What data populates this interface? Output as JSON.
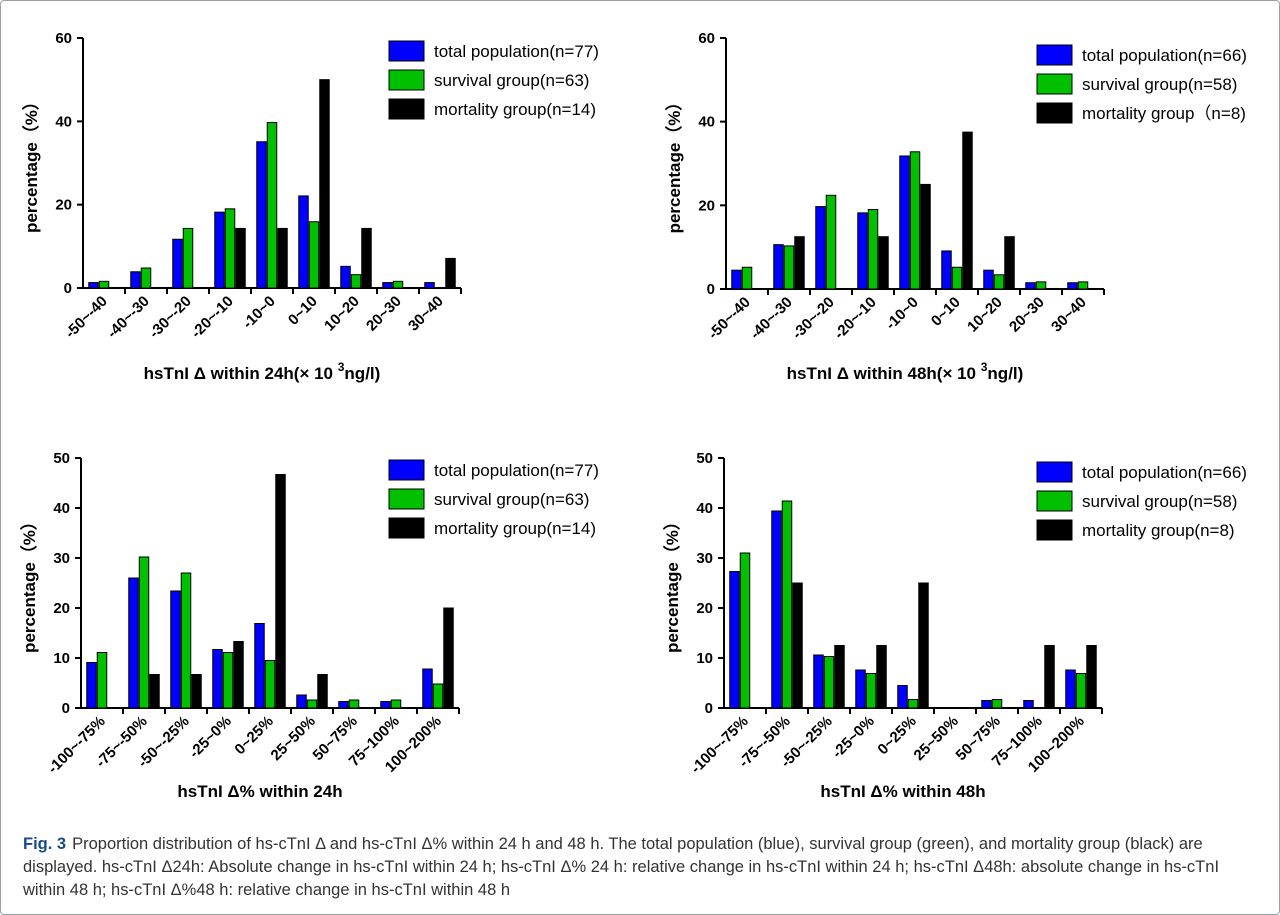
{
  "caption": {
    "label": "Fig. 3",
    "text": "Proportion distribution of hs-cTnI Δ and hs-cTnI Δ% within 24 h and 48 h. The total population (blue), survival group (green), and mortality group (black) are displayed. hs-cTnI Δ24h: Absolute change in hs-cTnI within 24 h; hs-cTnI Δ% 24 h: relative change in hs-cTnI within 24 h; hs-cTnI Δ48h: absolute change in hs-cTnI within 48 h; hs-cTnI Δ%48 h: relative change in hs-cTnI within 48 h"
  },
  "colors": {
    "total": "#0000ff",
    "survival": "#00c000",
    "mortality": "#000000"
  },
  "chart_data": [
    {
      "type": "bar",
      "ylabel": "percentage（%）",
      "xlabel": "hsTnI Δ within 24h(× 10 3ng/l)",
      "xlabel_parts": [
        "hsTnI Δ within 24h(× 10",
        "3",
        "ng/l)"
      ],
      "ylim": [
        0,
        60
      ],
      "yticks": [
        0,
        20,
        40,
        60
      ],
      "categories": [
        "-50~-40",
        "-40~-30",
        "-30~-20",
        "-20~-10",
        "-10~0",
        "0~10",
        "10~20",
        "20~30",
        "30~40"
      ],
      "series": [
        {
          "name": "total population(n=77)",
          "values": [
            1.3,
            3.9,
            11.7,
            18.2,
            35.1,
            22.1,
            5.2,
            1.3,
            1.3
          ]
        },
        {
          "name": "survival group(n=63)",
          "values": [
            1.6,
            4.8,
            14.3,
            19.0,
            39.7,
            15.9,
            3.2,
            1.6,
            0
          ]
        },
        {
          "name": "mortality group(n=14)",
          "values": [
            0,
            0,
            0,
            14.3,
            14.3,
            50.0,
            14.3,
            0,
            7.1
          ]
        }
      ]
    },
    {
      "type": "bar",
      "ylabel": "percentage（%）",
      "xlabel": "hsTnI Δ within 48h(× 10 3ng/l)",
      "xlabel_parts": [
        "hsTnI Δ within 48h(× 10",
        "3",
        "ng/l)"
      ],
      "ylim": [
        0,
        60
      ],
      "yticks": [
        0,
        20,
        40,
        60
      ],
      "categories": [
        "-50~-40",
        "-40~-30",
        "-30~-20",
        "-20~-10",
        "-10~0",
        "0~10",
        "10~20",
        "20~30",
        "30~40"
      ],
      "series": [
        {
          "name": "total population(n=66)",
          "values": [
            4.5,
            10.6,
            19.7,
            18.2,
            31.8,
            9.1,
            4.5,
            1.5,
            1.5
          ]
        },
        {
          "name": "survival group(n=58)",
          "values": [
            5.2,
            10.3,
            22.4,
            19.0,
            32.8,
            5.2,
            3.4,
            1.7,
            1.7
          ]
        },
        {
          "name": "mortality group（n=8)",
          "values": [
            0,
            12.5,
            0,
            12.5,
            25.0,
            37.5,
            12.5,
            0,
            0
          ]
        }
      ]
    },
    {
      "type": "bar",
      "ylabel": "percentage（%）",
      "xlabel": "hsTnI Δ%  within 24h",
      "ylim": [
        0,
        50
      ],
      "yticks": [
        0,
        10,
        20,
        30,
        40,
        50
      ],
      "categories": [
        "-100~-75%",
        "-75~-50%",
        "-50~-25%",
        "-25~0%",
        "0~25%",
        "25~50%",
        "50~75%",
        "75~100%",
        "100~200%"
      ],
      "series": [
        {
          "name": "total population(n=77)",
          "values": [
            9.1,
            26.0,
            23.4,
            11.7,
            16.9,
            2.6,
            1.3,
            1.3,
            7.8
          ]
        },
        {
          "name": "survival group(n=63)",
          "values": [
            11.1,
            30.2,
            27.0,
            11.1,
            9.5,
            1.6,
            1.6,
            1.6,
            4.8
          ]
        },
        {
          "name": "mortality group(n=14)",
          "values": [
            0,
            6.7,
            6.7,
            13.3,
            46.7,
            6.7,
            0,
            0,
            20.0
          ]
        }
      ]
    },
    {
      "type": "bar",
      "ylabel": "percentage（%）",
      "xlabel": "hsTnI Δ%  within 48h",
      "ylim": [
        0,
        50
      ],
      "yticks": [
        0,
        10,
        20,
        30,
        40,
        50
      ],
      "categories": [
        "-100~-75%",
        "-75~-50%",
        "-50~-25%",
        "-25~0%",
        "0~25%",
        "25~50%",
        "50~75%",
        "75~100%",
        "100~200%"
      ],
      "series": [
        {
          "name": "total population(n=66)",
          "values": [
            27.3,
            39.4,
            10.6,
            7.6,
            4.5,
            0,
            1.5,
            1.5,
            7.6
          ]
        },
        {
          "name": "survival group(n=58)",
          "values": [
            31.0,
            41.4,
            10.3,
            6.9,
            1.7,
            0,
            1.7,
            0,
            6.9
          ]
        },
        {
          "name": "mortality group(n=8)",
          "values": [
            0,
            25.0,
            12.5,
            12.5,
            25.0,
            0,
            0,
            12.5,
            12.5
          ]
        }
      ]
    }
  ]
}
